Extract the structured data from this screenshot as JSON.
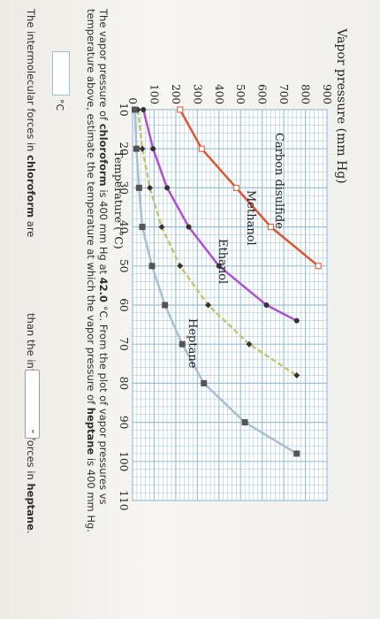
{
  "chart_data": {
    "type": "line",
    "title": "",
    "ylabel": "Vapor pressure (mm Hg)",
    "xlabel": "Temperature (°C)",
    "xlim": [
      10,
      110
    ],
    "ylim": [
      0,
      900
    ],
    "xticks": [
      10,
      20,
      30,
      40,
      50,
      60,
      70,
      80,
      90,
      100,
      110
    ],
    "yticks": [
      0,
      100,
      200,
      300,
      400,
      500,
      600,
      700,
      800,
      900
    ],
    "grid": true,
    "series": [
      {
        "name": "Carbon disulfide",
        "color": "#e0532e",
        "marker": "square",
        "x": [
          10,
          20,
          30,
          40,
          50
        ],
        "y": [
          220,
          320,
          480,
          640,
          860
        ]
      },
      {
        "name": "Methanol",
        "color": "#b04fd0",
        "marker": "circle",
        "x": [
          10,
          20,
          30,
          40,
          50,
          60,
          64
        ],
        "y": [
          50,
          95,
          160,
          260,
          400,
          620,
          760
        ]
      },
      {
        "name": "Ethanol",
        "color": "#c4c66a",
        "marker": "diamond",
        "x": [
          10,
          20,
          30,
          40,
          50,
          60,
          70,
          78
        ],
        "y": [
          25,
          45,
          80,
          135,
          220,
          350,
          540,
          760
        ]
      },
      {
        "name": "Heptane",
        "color": "#a9bdd3",
        "marker": "square",
        "x": [
          10,
          20,
          30,
          40,
          50,
          60,
          70,
          80,
          90,
          98
        ],
        "y": [
          10,
          18,
          30,
          45,
          90,
          150,
          230,
          330,
          520,
          760
        ]
      }
    ]
  },
  "question": {
    "line1_a": "The vapor pressure of ",
    "line1_b": "chloroform",
    "line1_c": " is 400 mm Hg at ",
    "line1_d": "42.0",
    "line1_e": " °C. From the plot of vapor pressures vs",
    "line2_a": "temperature above, estimate the temperature at which the vapor pressure of ",
    "line2_b": "heptane",
    "line2_c": " is 400 mm Hg.",
    "answer_value": "",
    "answer_unit": "°C",
    "line3_a": "The intermolecular forces in ",
    "line3_b": "chloroform",
    "line3_c": " are",
    "line3_d": " than the intermolecular forces in ",
    "line3_e": "heptane",
    "line3_f": ".",
    "select_value": ""
  },
  "colors": {
    "grid": "#9cc2d6",
    "axis": "#4a4a4a",
    "input_border": "#8fc3d8"
  }
}
